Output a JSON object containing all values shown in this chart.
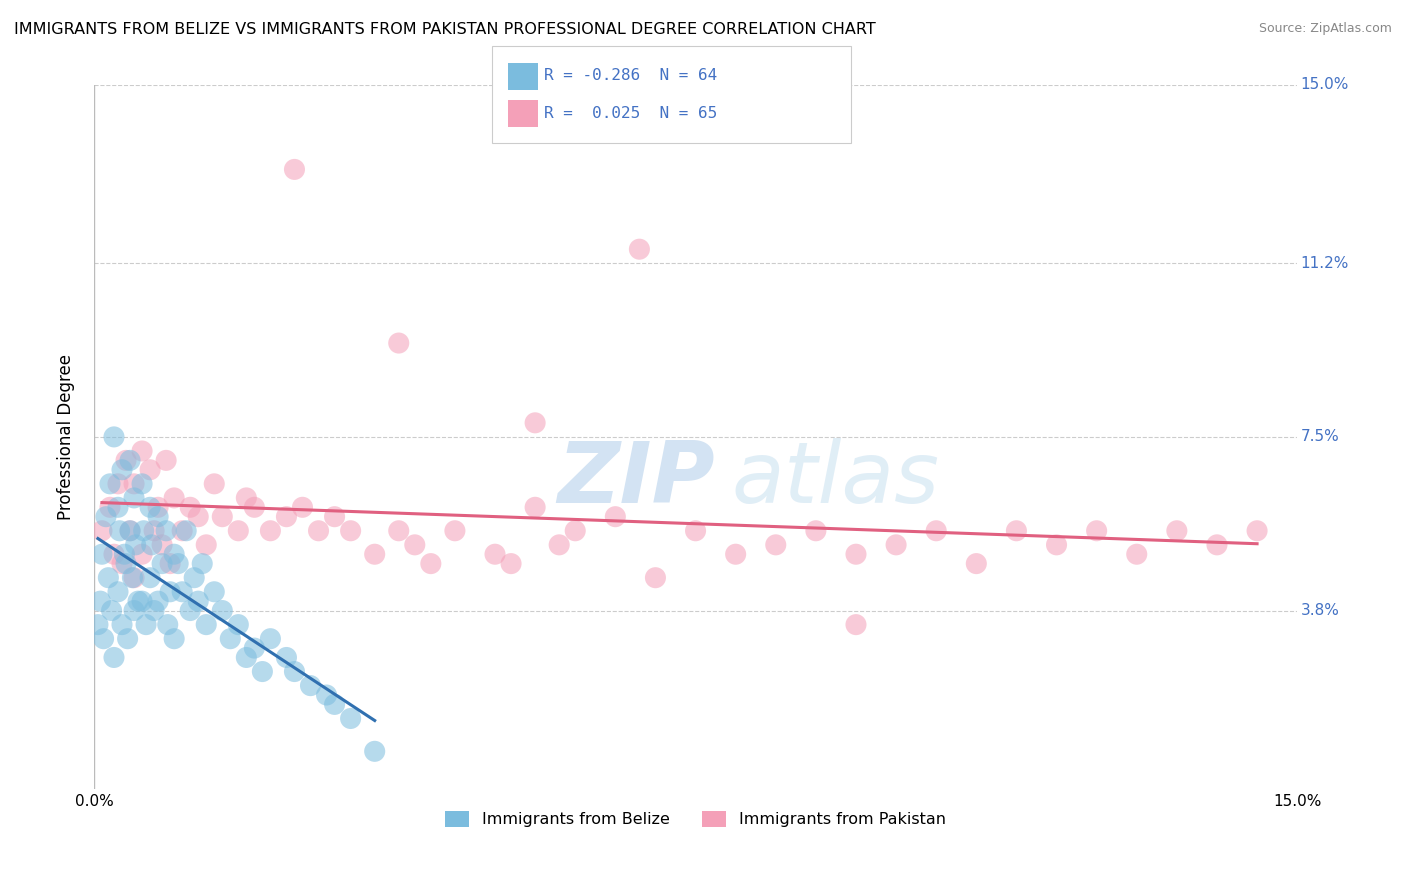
{
  "title": "IMMIGRANTS FROM BELIZE VS IMMIGRANTS FROM PAKISTAN PROFESSIONAL DEGREE CORRELATION CHART",
  "source": "Source: ZipAtlas.com",
  "ylabel": "Professional Degree",
  "xlim": [
    0.0,
    15.0
  ],
  "ylim": [
    0.0,
    15.0
  ],
  "ytick_vals": [
    3.8,
    7.5,
    11.2,
    15.0
  ],
  "ytick_labels": [
    "3.8%",
    "7.5%",
    "11.2%",
    "15.0%"
  ],
  "xtick_vals": [
    0.0,
    15.0
  ],
  "xtick_labels": [
    "0.0%",
    "15.0%"
  ],
  "legend_belize": "Immigrants from Belize",
  "legend_pakistan": "Immigrants from Pakistan",
  "R_belize": -0.286,
  "N_belize": 64,
  "R_pakistan": 0.025,
  "N_pakistan": 65,
  "color_belize": "#7BBCDE",
  "color_pakistan": "#F4A0B8",
  "trendline_color_belize": "#3070B0",
  "trendline_color_pakistan": "#E06080",
  "watermark_zip": "ZIP",
  "watermark_atlas": "atlas",
  "background_color": "#ffffff",
  "grid_color": "#cccccc",
  "belize_x": [
    0.05,
    0.08,
    0.1,
    0.12,
    0.15,
    0.18,
    0.2,
    0.22,
    0.25,
    0.25,
    0.3,
    0.3,
    0.32,
    0.35,
    0.35,
    0.38,
    0.4,
    0.42,
    0.45,
    0.45,
    0.48,
    0.5,
    0.5,
    0.52,
    0.55,
    0.6,
    0.6,
    0.62,
    0.65,
    0.7,
    0.7,
    0.72,
    0.75,
    0.8,
    0.8,
    0.85,
    0.9,
    0.92,
    0.95,
    1.0,
    1.0,
    1.05,
    1.1,
    1.15,
    1.2,
    1.25,
    1.3,
    1.35,
    1.4,
    1.5,
    1.6,
    1.7,
    1.8,
    1.9,
    2.0,
    2.1,
    2.2,
    2.4,
    2.5,
    2.7,
    2.9,
    3.0,
    3.2,
    3.5
  ],
  "belize_y": [
    3.5,
    4.0,
    5.0,
    3.2,
    5.8,
    4.5,
    6.5,
    3.8,
    7.5,
    2.8,
    6.0,
    4.2,
    5.5,
    3.5,
    6.8,
    5.0,
    4.8,
    3.2,
    7.0,
    5.5,
    4.5,
    6.2,
    3.8,
    5.2,
    4.0,
    6.5,
    4.0,
    5.5,
    3.5,
    6.0,
    4.5,
    5.2,
    3.8,
    5.8,
    4.0,
    4.8,
    5.5,
    3.5,
    4.2,
    5.0,
    3.2,
    4.8,
    4.2,
    5.5,
    3.8,
    4.5,
    4.0,
    4.8,
    3.5,
    4.2,
    3.8,
    3.2,
    3.5,
    2.8,
    3.0,
    2.5,
    3.2,
    2.8,
    2.5,
    2.2,
    2.0,
    1.8,
    1.5,
    0.8
  ],
  "pakistan_x": [
    0.1,
    0.2,
    0.25,
    0.3,
    0.35,
    0.4,
    0.45,
    0.5,
    0.5,
    0.6,
    0.6,
    0.7,
    0.75,
    0.8,
    0.85,
    0.9,
    0.95,
    1.0,
    1.1,
    1.2,
    1.3,
    1.4,
    1.5,
    1.6,
    1.8,
    1.9,
    2.0,
    2.2,
    2.4,
    2.6,
    2.8,
    3.0,
    3.2,
    3.5,
    3.8,
    4.0,
    4.2,
    4.5,
    5.0,
    5.2,
    5.5,
    5.8,
    6.0,
    6.5,
    7.0,
    7.5,
    8.0,
    8.5,
    9.0,
    9.5,
    10.0,
    10.5,
    11.0,
    11.5,
    12.0,
    12.5,
    13.0,
    13.5,
    14.0,
    14.5,
    3.8,
    5.5,
    6.8,
    9.5,
    2.5
  ],
  "pakistan_y": [
    5.5,
    6.0,
    5.0,
    6.5,
    4.8,
    7.0,
    5.5,
    6.5,
    4.5,
    7.2,
    5.0,
    6.8,
    5.5,
    6.0,
    5.2,
    7.0,
    4.8,
    6.2,
    5.5,
    6.0,
    5.8,
    5.2,
    6.5,
    5.8,
    5.5,
    6.2,
    6.0,
    5.5,
    5.8,
    6.0,
    5.5,
    5.8,
    5.5,
    5.0,
    5.5,
    5.2,
    4.8,
    5.5,
    5.0,
    4.8,
    6.0,
    5.2,
    5.5,
    5.8,
    4.5,
    5.5,
    5.0,
    5.2,
    5.5,
    5.0,
    5.2,
    5.5,
    4.8,
    5.5,
    5.2,
    5.5,
    5.0,
    5.5,
    5.2,
    5.5,
    9.5,
    7.8,
    11.5,
    3.5,
    13.2
  ]
}
